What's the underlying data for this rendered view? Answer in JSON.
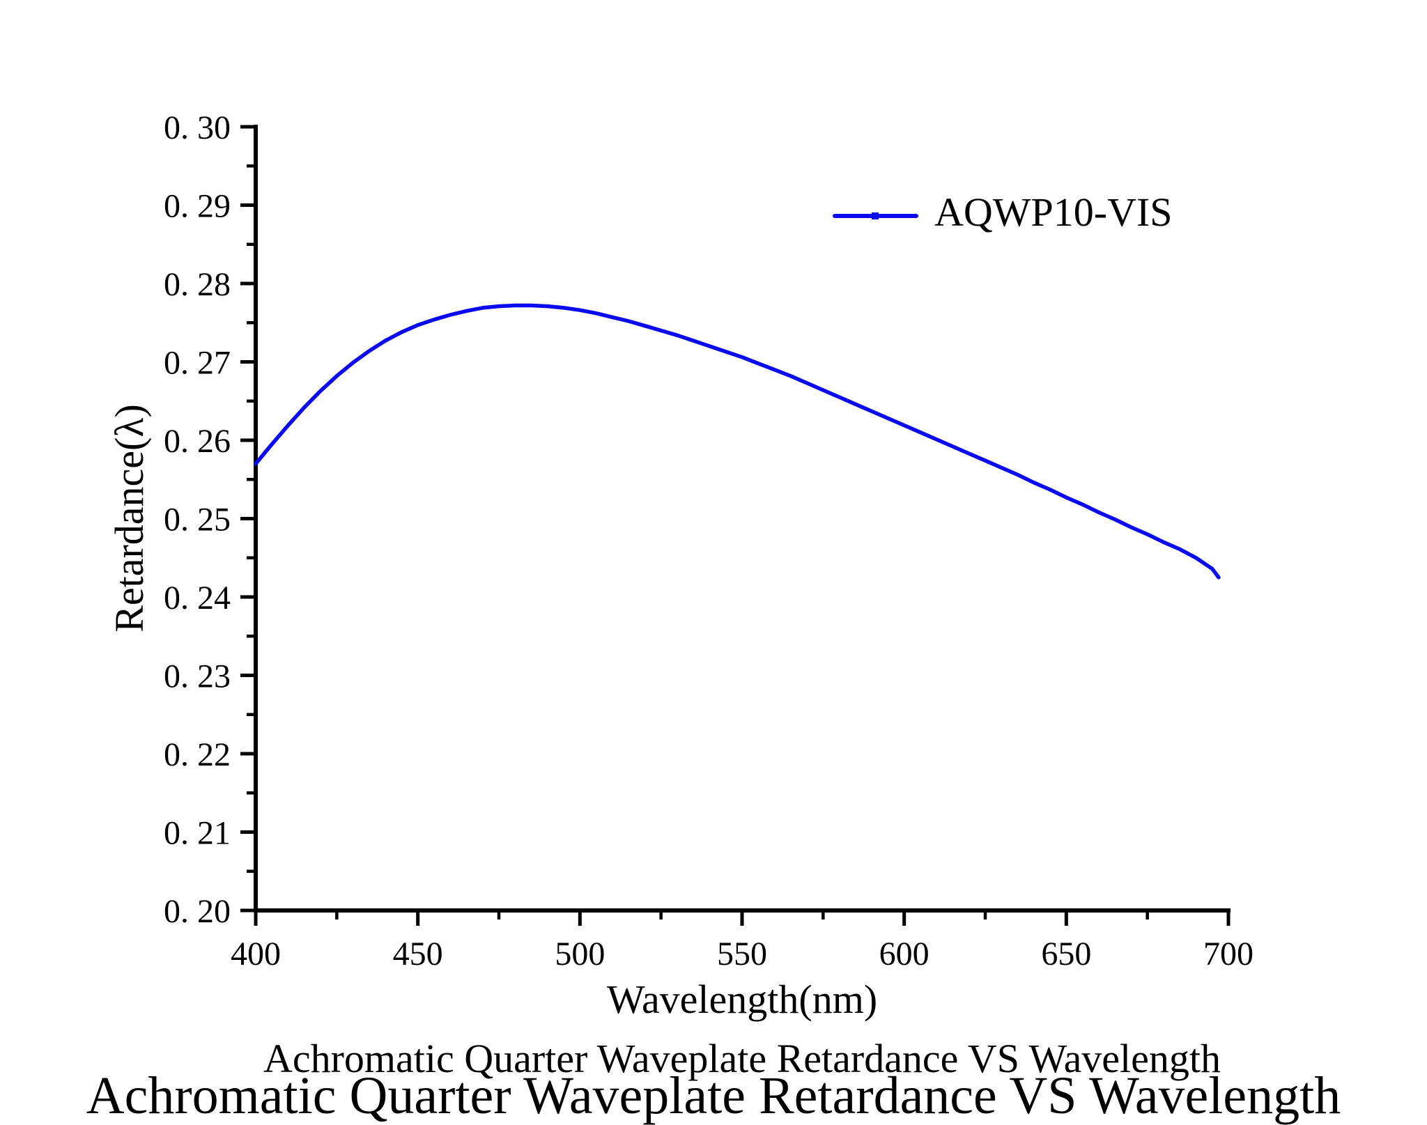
{
  "page": {
    "background": "#ffffff"
  },
  "title": {
    "text": "Achromatic Quarter Waveplate Retardance VS Wavelength"
  },
  "legend": {
    "label": "AQWP10-VIS",
    "line_color": "#0A0AF0",
    "has_center_marker": true
  },
  "axes": {
    "x": {
      "label": "Wavelength(nm)",
      "min": 400,
      "max": 700,
      "major_ticks": [
        400,
        450,
        500,
        550,
        600,
        650,
        700
      ],
      "tick_labels": [
        "400",
        "450",
        "500",
        "550",
        "600",
        "650",
        "700"
      ],
      "minor_ticks": [
        425,
        475,
        525,
        575,
        625,
        675
      ]
    },
    "y": {
      "label": "Retardance(λ)",
      "min": 0.2,
      "max": 0.3,
      "major_ticks": [
        0.2,
        0.21,
        0.22,
        0.23,
        0.24,
        0.25,
        0.26,
        0.27,
        0.28,
        0.29,
        0.3
      ],
      "tick_labels": [
        "0. 20",
        "0. 21",
        "0. 22",
        "0. 23",
        "0. 24",
        "0. 25",
        "0. 26",
        "0. 27",
        "0. 28",
        "0. 29",
        "0. 30"
      ],
      "minor_ticks": [
        0.205,
        0.215,
        0.225,
        0.235,
        0.245,
        0.255,
        0.265,
        0.275,
        0.285,
        0.295
      ]
    }
  },
  "bottom_strip": {
    "text": "Achromatic Quarter Waveplate Retardance VS Wavelength"
  },
  "chart_data": {
    "type": "line",
    "title": "Achromatic Quarter Waveplate Retardance VS Wavelength",
    "xlabel": "Wavelength(nm)",
    "ylabel": "Retardance(λ)",
    "xlim": [
      400,
      700
    ],
    "ylim": [
      0.2,
      0.3
    ],
    "grid": false,
    "legend_position": "upper-right-inside",
    "series": [
      {
        "name": "AQWP10-VIS",
        "color": "#0A0AF0",
        "x": [
          400,
          405,
          410,
          415,
          420,
          425,
          430,
          435,
          440,
          445,
          450,
          455,
          460,
          465,
          470,
          475,
          480,
          485,
          490,
          495,
          500,
          505,
          510,
          515,
          520,
          525,
          530,
          535,
          540,
          545,
          550,
          555,
          560,
          565,
          570,
          575,
          580,
          585,
          590,
          595,
          600,
          605,
          610,
          615,
          620,
          625,
          630,
          635,
          640,
          645,
          650,
          655,
          660,
          665,
          670,
          675,
          680,
          685,
          690,
          695,
          697
        ],
        "y": [
          0.257,
          0.2595,
          0.2619,
          0.2642,
          0.2663,
          0.2682,
          0.2699,
          0.2714,
          0.2727,
          0.2738,
          0.2747,
          0.2754,
          0.276,
          0.2765,
          0.2769,
          0.2771,
          0.2772,
          0.2772,
          0.2771,
          0.2769,
          0.2766,
          0.2762,
          0.2757,
          0.2752,
          0.2746,
          0.274,
          0.2734,
          0.2727,
          0.272,
          0.2713,
          0.2706,
          0.2698,
          0.269,
          0.2682,
          0.2673,
          0.2664,
          0.2655,
          0.2646,
          0.2637,
          0.2628,
          0.2619,
          0.261,
          0.2601,
          0.2592,
          0.2583,
          0.2574,
          0.2565,
          0.2556,
          0.2546,
          0.2537,
          0.2527,
          0.2518,
          0.2508,
          0.2499,
          0.2489,
          0.248,
          0.247,
          0.2461,
          0.245,
          0.2436,
          0.2425
        ]
      }
    ]
  }
}
